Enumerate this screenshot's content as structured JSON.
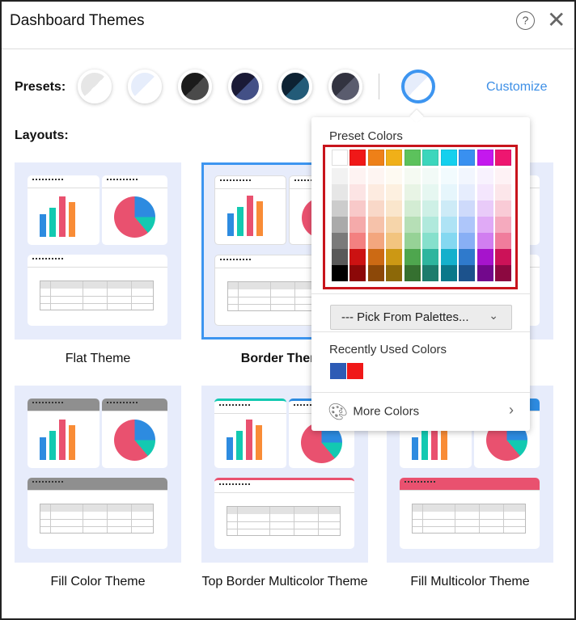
{
  "header": {
    "title": "Dashboard Themes",
    "help_icon": "?",
    "close_icon": "✕"
  },
  "presets": {
    "label": "Presets:",
    "items": [
      {
        "a": "#e6e6e6",
        "b": "#ffffff"
      },
      {
        "a": "#e6edfb",
        "b": "#ffffff"
      },
      {
        "a": "#1b1b1b",
        "b": "#4a4a4a"
      },
      {
        "a": "#1a1a36",
        "b": "#435086"
      },
      {
        "a": "#0d2233",
        "b": "#235b78"
      },
      {
        "a": "#323340",
        "b": "#5a5c6e"
      }
    ],
    "selected": {
      "a": "#e6edfb",
      "b": "#ffffff"
    },
    "customize": "Customize"
  },
  "layouts": {
    "label": "Layouts:",
    "items": [
      {
        "name": "Flat Theme",
        "style": "flat"
      },
      {
        "name": "Border Theme",
        "style": "border",
        "selected": true
      },
      {
        "name": "",
        "style": "flat"
      },
      {
        "name": "Fill Color Theme",
        "style": "fill"
      },
      {
        "name": "Top Border Multicolor Theme",
        "style": "topborder"
      },
      {
        "name": "Fill Multicolor Theme",
        "style": "fillmulti"
      }
    ]
  },
  "chart_colors": {
    "blue": "#2d8be0",
    "teal": "#13c9b1",
    "pink": "#e9516f",
    "orange": "#f98c36"
  },
  "popup": {
    "title": "Preset Colors",
    "base": [
      "#ffffff",
      "#f01818",
      "#ee8018",
      "#f0b018",
      "#5cc25c",
      "#3cd6bc",
      "#14d0ee",
      "#3990f0",
      "#c418ee",
      "#ee1670"
    ],
    "shades": [
      [
        "#f2f2f2",
        "#fef3f2",
        "#fef5f2",
        "#fefaf2",
        "#f5faf2",
        "#f2faf7",
        "#f2fbfe",
        "#f2f6fe",
        "#f8f2fe",
        "#fef2f5"
      ],
      [
        "#e6e6e6",
        "#fce4e4",
        "#fdebe0",
        "#fdf0e0",
        "#e8f4e5",
        "#e6f7f1",
        "#e6f6fc",
        "#e6edfd",
        "#f4e6fd",
        "#fce6ea"
      ],
      [
        "#cccccc",
        "#f8c9c9",
        "#f9d8c8",
        "#fae6cc",
        "#d3ecd3",
        "#cef0e6",
        "#cdebf7",
        "#cedafb",
        "#e9cbf9",
        "#f9cbd6"
      ],
      [
        "#aaaaaa",
        "#f5aaaa",
        "#f6c2aa",
        "#f6d5aa",
        "#b6dfb6",
        "#b0e9dc",
        "#aee3f5",
        "#aec6fa",
        "#e0aaf6",
        "#f5aabe"
      ],
      [
        "#7a7a7a",
        "#f38080",
        "#f3a67e",
        "#f2c47f",
        "#96d296",
        "#86e0cc",
        "#84d8f1",
        "#88aff5",
        "#d17ef0",
        "#f07c9c"
      ],
      [
        "#595959",
        "#cc1212",
        "#cc6a14",
        "#cc9814",
        "#4ea64e",
        "#2eb59e",
        "#14b0cc",
        "#2f7acc",
        "#a614cc",
        "#cc1258"
      ],
      [
        "#000000",
        "#8c0808",
        "#8c4808",
        "#8c6808",
        "#357030",
        "#1c7c6c",
        "#0a788a",
        "#1c528c",
        "#72088c",
        "#8c0840"
      ]
    ],
    "dropdown": "--- Pick From Palettes...",
    "dropdown_chev": "⌄",
    "recent_label": "Recently Used Colors",
    "recent": [
      "#2d5bb5",
      "#f01818"
    ],
    "more": "More Colors",
    "more_chev": "›"
  }
}
